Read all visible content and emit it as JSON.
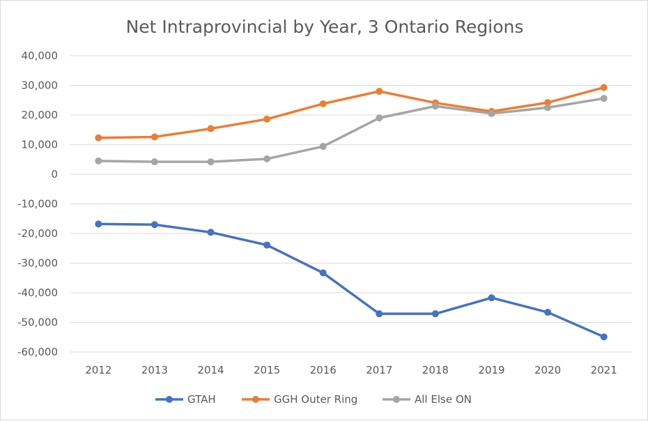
{
  "chart_data": {
    "type": "line",
    "title": "Net Intraprovincial by Year, 3 Ontario Regions",
    "xlabel": "",
    "ylabel": "",
    "categories": [
      "2012",
      "2013",
      "2014",
      "2015",
      "2016",
      "2017",
      "2018",
      "2019",
      "2020",
      "2021"
    ],
    "ylim": [
      -60000,
      40000
    ],
    "yticks": [
      40000,
      30000,
      20000,
      10000,
      0,
      -10000,
      -20000,
      -30000,
      -40000,
      -50000,
      -60000
    ],
    "ytick_labels": [
      "40,000",
      "30,000",
      "20,000",
      "10,000",
      "0",
      "-10,000",
      "-20,000",
      "-30,000",
      "-40,000",
      "-50,000",
      "-60,000"
    ],
    "grid": true,
    "legend_position": "bottom",
    "series": [
      {
        "name": "GTAH",
        "color": "#4472c4",
        "values": [
          -16800,
          -17000,
          -19600,
          -23900,
          -33300,
          -47100,
          -47100,
          -41700,
          -46600,
          -54900
        ]
      },
      {
        "name": "GGH Outer Ring",
        "color": "#ed7d31",
        "values": [
          12300,
          12600,
          15400,
          18600,
          23800,
          28000,
          24100,
          21200,
          24200,
          29300
        ]
      },
      {
        "name": "All Else ON",
        "color": "#a5a5a5",
        "values": [
          4500,
          4200,
          4200,
          5200,
          9400,
          19000,
          23000,
          20500,
          22500,
          25600
        ]
      }
    ]
  }
}
